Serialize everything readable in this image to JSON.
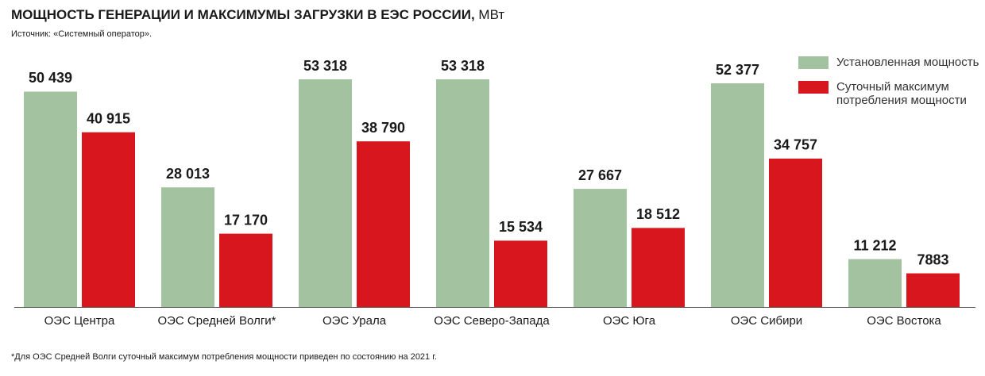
{
  "chart_data": {
    "type": "bar",
    "title": "МОЩНОСТЬ ГЕНЕРАЦИИ И МАКСИМУМЫ ЗАГРУЗКИ В ЕЭС РОССИИ,",
    "unit": "МВт",
    "subtitle": "Источник: «Системный оператор».",
    "footnote": "*Для ОЭС Средней Волги суточный максимум потребления мощности приведен по состоянию на 2021 г.",
    "categories": [
      "ОЭС Центра",
      "ОЭС Средней Волги*",
      "ОЭС Урала",
      "ОЭС Северо-Запада",
      "ОЭС Юга",
      "ОЭС Сибири",
      "ОЭС Востока"
    ],
    "series": [
      {
        "name": "Установленная мощность",
        "color": "#a3c2a0",
        "values": [
          50439,
          28013,
          53318,
          53318,
          27667,
          52377,
          11212
        ],
        "value_labels": [
          "50 439",
          "28 013",
          "53 318",
          "53 318",
          "27 667",
          "52 377",
          "11 212"
        ]
      },
      {
        "name": "Суточный максимум потребления мощности",
        "color": "#d7161e",
        "values": [
          40915,
          17170,
          38790,
          15534,
          18512,
          34757,
          7883
        ],
        "value_labels": [
          "40 915",
          "17 170",
          "38 790",
          "15 534",
          "18 512",
          "34 757",
          "7883"
        ]
      }
    ]
  }
}
